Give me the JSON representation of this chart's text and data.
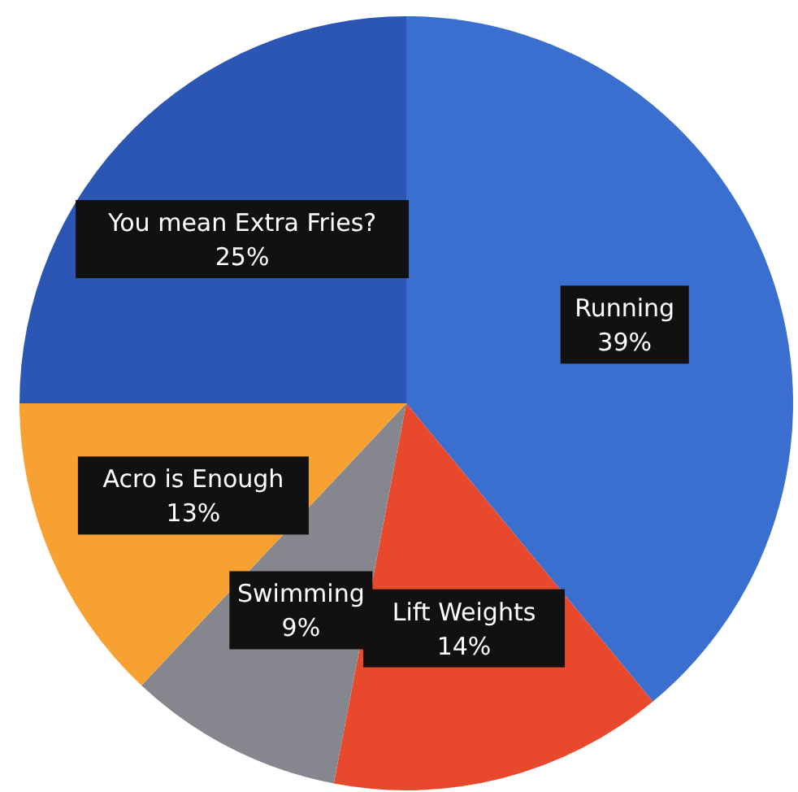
{
  "chart_data": {
    "type": "pie",
    "categories": [
      "Running",
      "Lift Weights",
      "Swimming",
      "Acro is Enough",
      "You mean Extra Fries?"
    ],
    "values": [
      39,
      14,
      9,
      13,
      25
    ],
    "colors": [
      "#3b6fcf",
      "#e8482b",
      "#86868e",
      "#f6a132",
      "#2b56b3"
    ],
    "value_labels": [
      "39%",
      "14%",
      "9%",
      "13%",
      "25%"
    ]
  }
}
